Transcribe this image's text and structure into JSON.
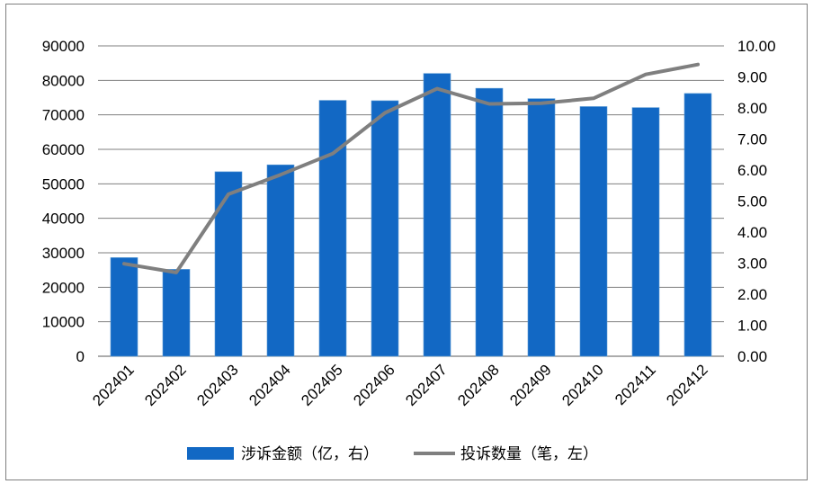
{
  "chart_data": {
    "type": "bar",
    "categories": [
      "202401",
      "202402",
      "202403",
      "202404",
      "202405",
      "202406",
      "202407",
      "202408",
      "202409",
      "202410",
      "202411",
      "202412"
    ],
    "series": [
      {
        "name": "涉诉金额（亿，右）",
        "type": "bar",
        "axis": "left",
        "color": "#1268C4",
        "values": [
          28600,
          25200,
          53500,
          55500,
          74200,
          74100,
          82000,
          77700,
          74700,
          72400,
          72100,
          76200
        ]
      },
      {
        "name": "投诉数量（笔，左）",
        "type": "line",
        "axis": "right",
        "color": "#7F7F7F",
        "values": [
          2.98,
          2.7,
          5.22,
          5.85,
          6.53,
          7.84,
          8.62,
          8.13,
          8.15,
          8.31,
          9.08,
          9.4
        ]
      }
    ],
    "y_left": {
      "min": 0,
      "max": 90000,
      "ticks": [
        "0",
        "10000",
        "20000",
        "30000",
        "40000",
        "50000",
        "60000",
        "70000",
        "80000",
        "90000"
      ]
    },
    "y_right": {
      "min": 0,
      "max": 10,
      "ticks": [
        "0.00",
        "1.00",
        "2.00",
        "3.00",
        "4.00",
        "5.00",
        "6.00",
        "7.00",
        "8.00",
        "9.00",
        "10.00"
      ]
    },
    "grid": true,
    "legend_position": "bottom"
  }
}
